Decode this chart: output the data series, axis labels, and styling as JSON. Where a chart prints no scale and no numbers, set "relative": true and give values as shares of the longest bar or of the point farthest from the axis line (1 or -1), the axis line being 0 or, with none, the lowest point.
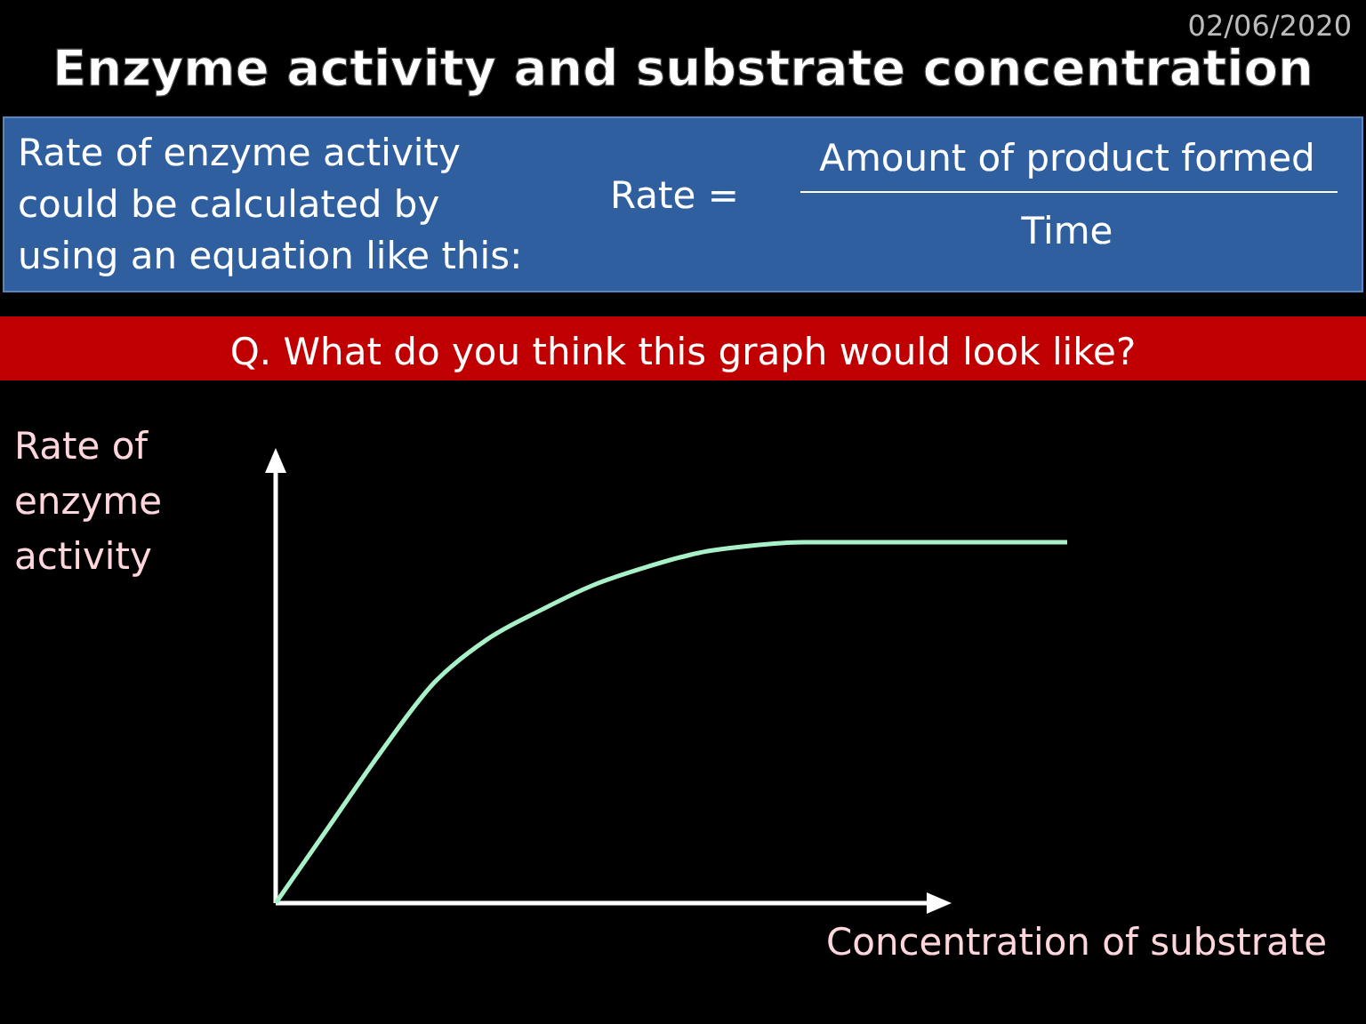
{
  "chart_data": {
    "type": "line",
    "relative": true,
    "title": "Enzyme activity and substrate concentration",
    "ylabel": "Rate of\nenzyme\nactivity",
    "xlabel": "Concentration of substrate",
    "annotations": [
      "02/06/2020",
      "Rate of enzyme activity\ncould be calculated by\nusing an equation like this:",
      "Rate =",
      "Amount of product formed",
      "Time",
      "Q. What do you think this graph would look like?"
    ],
    "categories": [
      null,
      null,
      null,
      null,
      null,
      null,
      null,
      null,
      null,
      null,
      null,
      null,
      null,
      null,
      null,
      null
    ],
    "series": [
      {
        "color": "#a8f0c8",
        "values": [
          0,
          0.21,
          0.42,
          0.61,
          0.73,
          0.81,
          0.88,
          0.93,
          0.97,
          0.99,
          1,
          1,
          1,
          1,
          1,
          1
        ]
      }
    ],
    "marker": "none",
    "line_style": "solid"
  }
}
